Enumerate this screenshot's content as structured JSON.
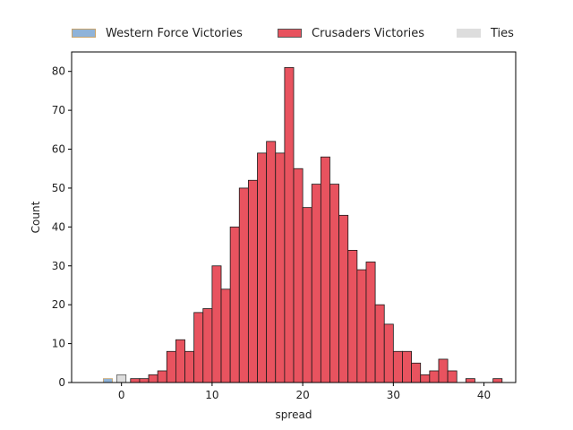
{
  "chart_data": {
    "type": "bar",
    "xlabel": "spread",
    "ylabel": "Count",
    "xlim": [
      -5.5,
      43.5
    ],
    "ylim": [
      0,
      85
    ],
    "xticks": [
      0,
      10,
      20,
      30,
      40
    ],
    "yticks": [
      0,
      10,
      20,
      30,
      40,
      50,
      60,
      70,
      80
    ],
    "grid": false,
    "legend_placement": "top (outside, above plot)",
    "bin_width": 1,
    "series": [
      {
        "name": "Western Force Victories",
        "color": "#8fb3d9",
        "edge": "#c8a36a",
        "bins": [
          {
            "x0": -2,
            "x1": -1,
            "count": 1
          }
        ]
      },
      {
        "name": "Crusaders Victories",
        "color": "#e8535f",
        "edge": "#1a1a1a",
        "bins": [
          {
            "x0": 1,
            "x1": 2,
            "count": 1
          },
          {
            "x0": 2,
            "x1": 3,
            "count": 1
          },
          {
            "x0": 3,
            "x1": 4,
            "count": 2
          },
          {
            "x0": 4,
            "x1": 5,
            "count": 3
          },
          {
            "x0": 5,
            "x1": 6,
            "count": 8
          },
          {
            "x0": 6,
            "x1": 7,
            "count": 11
          },
          {
            "x0": 7,
            "x1": 8,
            "count": 8
          },
          {
            "x0": 8,
            "x1": 9,
            "count": 18
          },
          {
            "x0": 9,
            "x1": 10,
            "count": 19
          },
          {
            "x0": 10,
            "x1": 11,
            "count": 30
          },
          {
            "x0": 11,
            "x1": 12,
            "count": 24
          },
          {
            "x0": 12,
            "x1": 13,
            "count": 40
          },
          {
            "x0": 13,
            "x1": 14,
            "count": 50
          },
          {
            "x0": 14,
            "x1": 15,
            "count": 52
          },
          {
            "x0": 15,
            "x1": 16,
            "count": 59
          },
          {
            "x0": 16,
            "x1": 17,
            "count": 62
          },
          {
            "x0": 17,
            "x1": 18,
            "count": 59
          },
          {
            "x0": 18,
            "x1": 19,
            "count": 81
          },
          {
            "x0": 19,
            "x1": 20,
            "count": 55
          },
          {
            "x0": 20,
            "x1": 21,
            "count": 45
          },
          {
            "x0": 21,
            "x1": 22,
            "count": 51
          },
          {
            "x0": 22,
            "x1": 23,
            "count": 58
          },
          {
            "x0": 23,
            "x1": 24,
            "count": 51
          },
          {
            "x0": 24,
            "x1": 25,
            "count": 43
          },
          {
            "x0": 25,
            "x1": 26,
            "count": 34
          },
          {
            "x0": 26,
            "x1": 27,
            "count": 29
          },
          {
            "x0": 27,
            "x1": 28,
            "count": 31
          },
          {
            "x0": 28,
            "x1": 29,
            "count": 20
          },
          {
            "x0": 29,
            "x1": 30,
            "count": 15
          },
          {
            "x0": 30,
            "x1": 31,
            "count": 8
          },
          {
            "x0": 31,
            "x1": 32,
            "count": 8
          },
          {
            "x0": 32,
            "x1": 33,
            "count": 5
          },
          {
            "x0": 33,
            "x1": 34,
            "count": 2
          },
          {
            "x0": 34,
            "x1": 35,
            "count": 3
          },
          {
            "x0": 35,
            "x1": 36,
            "count": 6
          },
          {
            "x0": 36,
            "x1": 37,
            "count": 3
          },
          {
            "x0": 38,
            "x1": 39,
            "count": 1
          },
          {
            "x0": 41,
            "x1": 42,
            "count": 1
          }
        ]
      },
      {
        "name": "Ties",
        "color": "#dddddd",
        "edge": "#555555",
        "bins": [
          {
            "x0": -0.5,
            "x1": 0.5,
            "count": 2
          }
        ]
      }
    ]
  }
}
